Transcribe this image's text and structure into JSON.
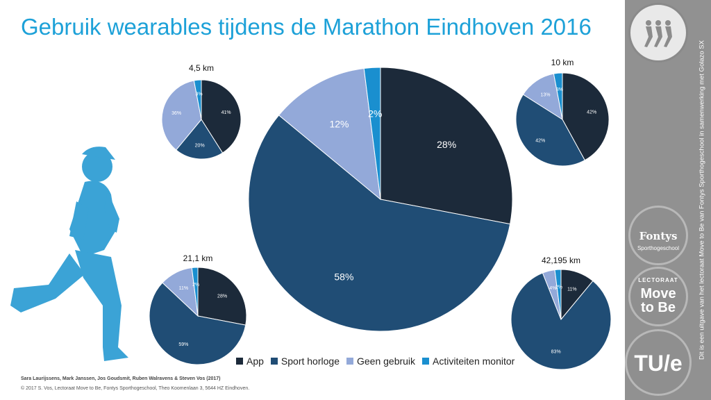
{
  "title": "Gebruik wearables tijdens de Marathon Eindhoven 2016",
  "colors": {
    "App": "#1c2a3a",
    "Sport horloge": "#204d75",
    "Geen gebruik": "#93a9d9",
    "Activiteiten monitor": "#1a8fcf",
    "title": "#1da1d8",
    "runner": "#3ba3d6",
    "sidebar": "#919191"
  },
  "legend": [
    "App",
    "Sport horloge",
    "Geen gebruik",
    "Activiteiten monitor"
  ],
  "chart_data": [
    {
      "type": "pie",
      "title": "",
      "categories": [
        "App",
        "Sport horloge",
        "Geen gebruik",
        "Activiteiten monitor"
      ],
      "values": [
        28,
        58,
        12,
        2
      ],
      "labels": [
        "28%",
        "58%",
        "12%",
        "2%"
      ]
    },
    {
      "type": "pie",
      "title": "4,5 km",
      "categories": [
        "App",
        "Sport horloge",
        "Geen gebruik",
        "Activiteiten monitor"
      ],
      "values": [
        41,
        20,
        36,
        3
      ],
      "labels": [
        "41%",
        "20%",
        "36%",
        "3%"
      ]
    },
    {
      "type": "pie",
      "title": "10 km",
      "categories": [
        "App",
        "Sport horloge",
        "Geen gebruik",
        "Activiteiten monitor"
      ],
      "values": [
        42,
        42,
        13,
        3
      ],
      "labels": [
        "42%",
        "42%",
        "13%",
        "3%"
      ]
    },
    {
      "type": "pie",
      "title": "21,1 km",
      "categories": [
        "App",
        "Sport horloge",
        "Geen gebruik",
        "Activiteiten monitor"
      ],
      "values": [
        28,
        59,
        11,
        2
      ],
      "labels": [
        "28%",
        "59%",
        "11%",
        "2%"
      ]
    },
    {
      "type": "pie",
      "title": "42,195 km",
      "categories": [
        "App",
        "Sport horloge",
        "Geen gebruik",
        "Activiteiten monitor"
      ],
      "values": [
        11,
        83,
        4,
        2
      ],
      "labels": [
        "11%",
        "83%",
        "4%",
        "2%"
      ]
    }
  ],
  "credits": "Sara Laurijssens, Mark Janssen, Jos Goudsmit, Ruben Walravens & Steven Vos (2017)",
  "copyright": "© 2017 S. Vos, Lectoraat Move to Be, Fontys Sporthogeschool, Theo Koomenlaan 3, 5644 HZ Eindhoven.",
  "sidebar_text": "Dit is een uitgave van het lectoraat Move to Be van Fontys Sporthogeschool in samenwerking met Golazo SX",
  "logos": {
    "fontys_name": "Fontys",
    "fontys_sub": "Sporthogeschool",
    "lectoraat": "LECTORAAT",
    "move": "Move",
    "tobe": "to Be",
    "tue": "TU/e"
  }
}
